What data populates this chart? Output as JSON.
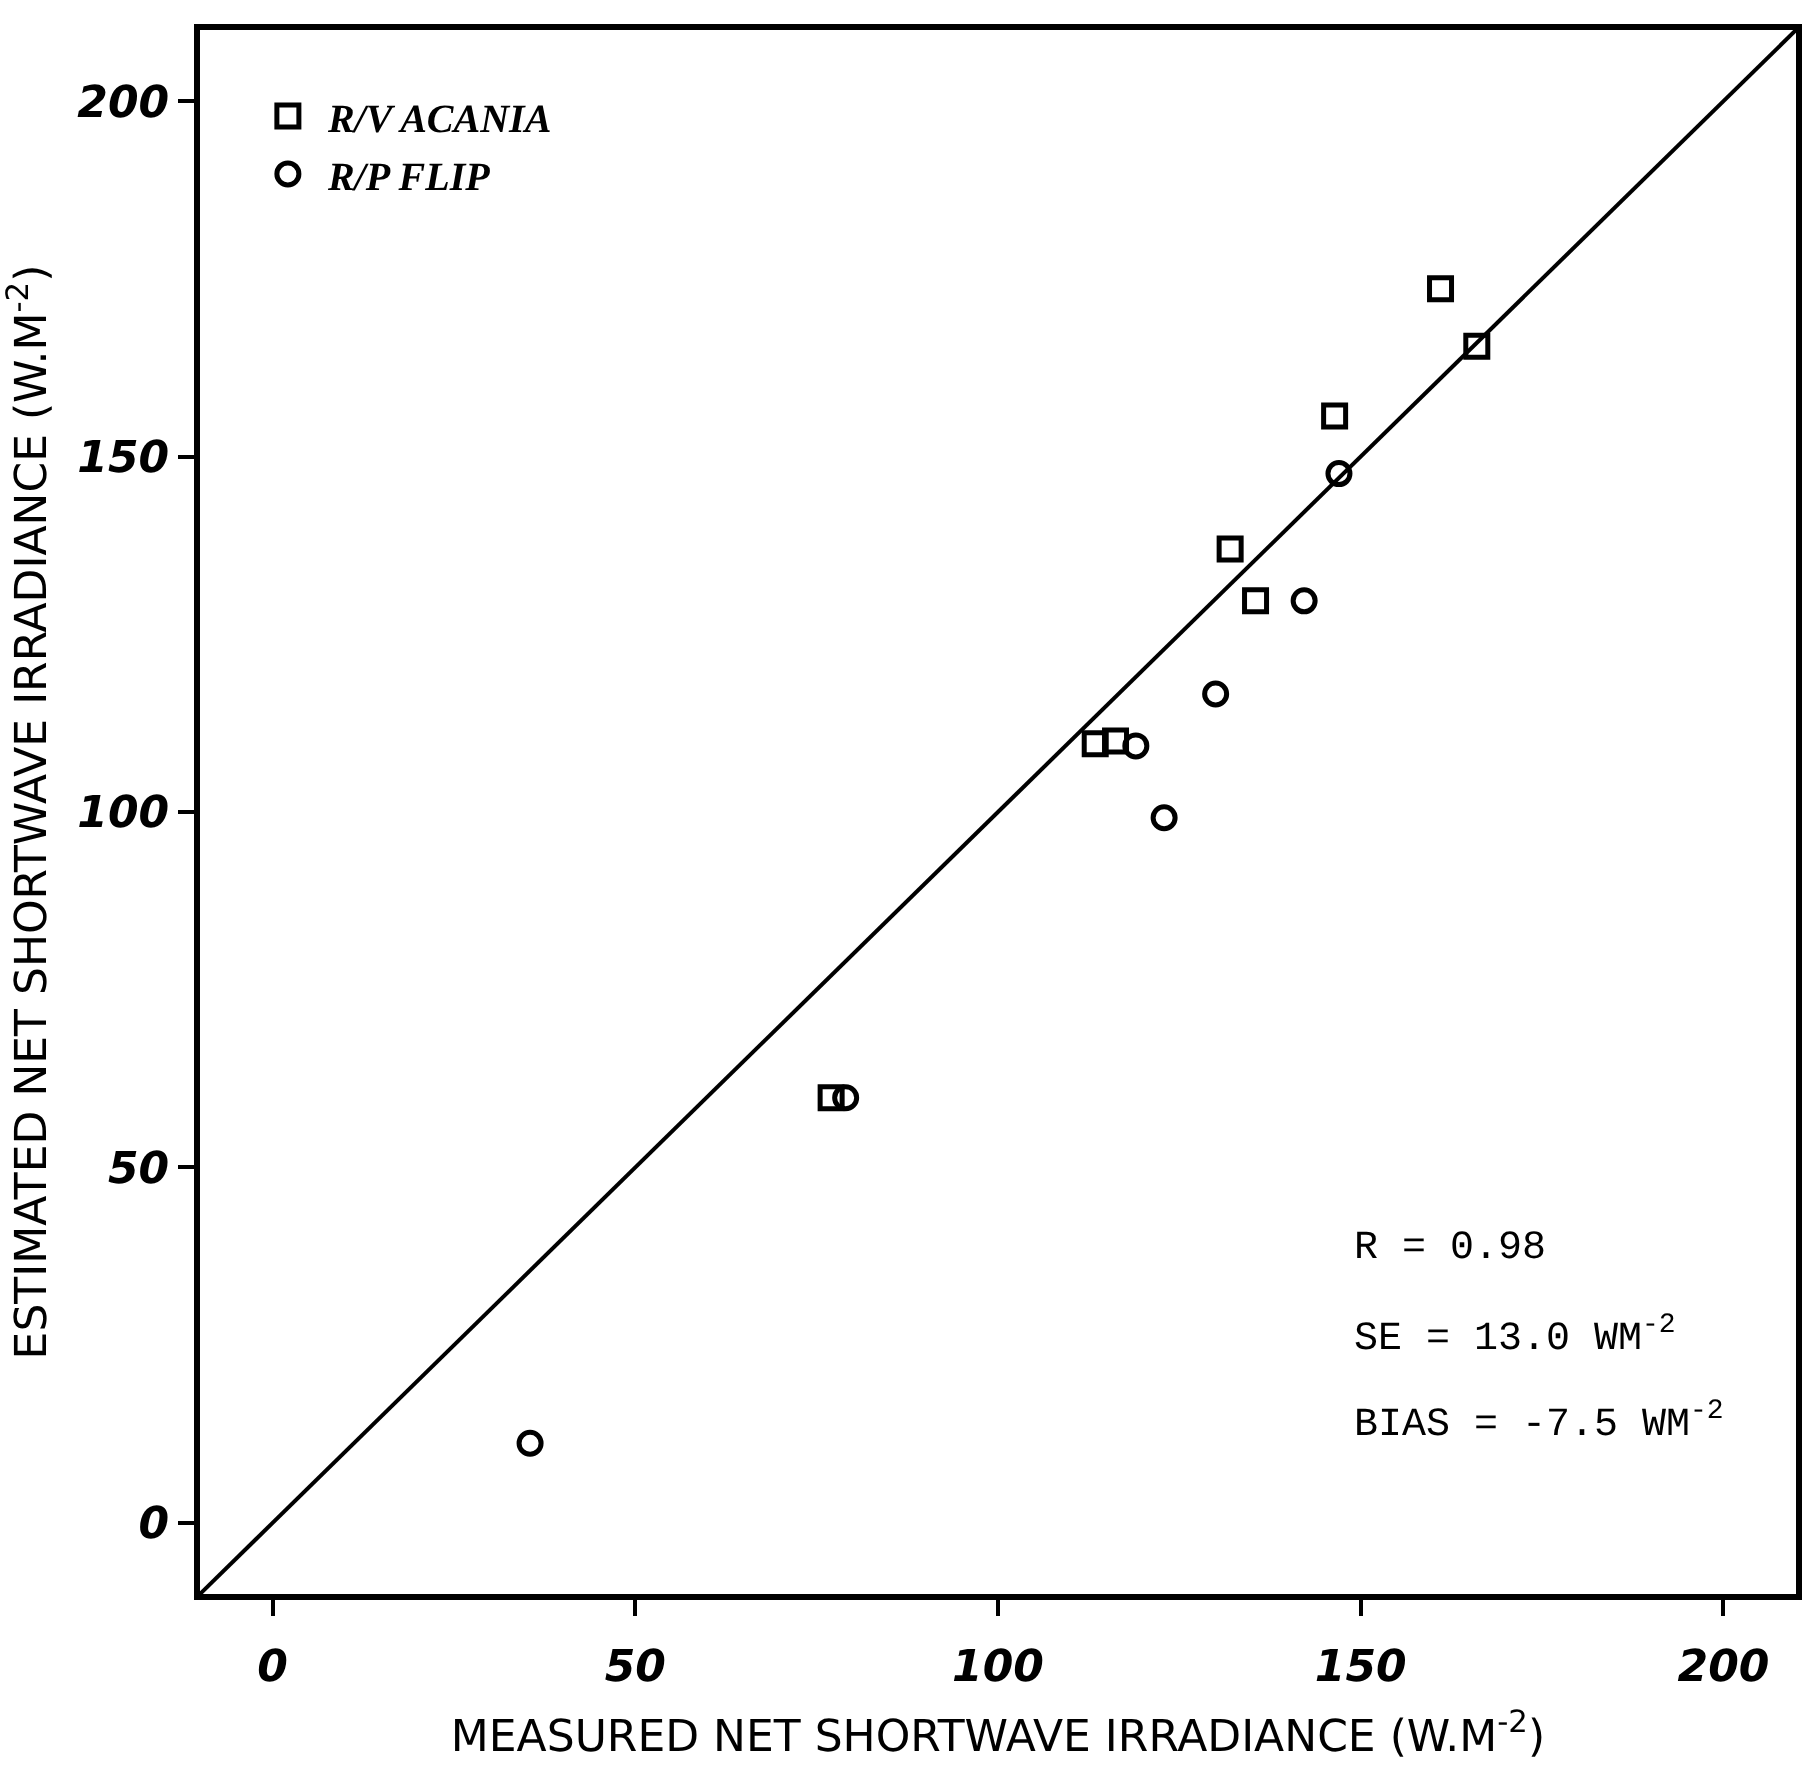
{
  "chart_data": {
    "type": "scatter",
    "xlabel": "MEASURED NET SHORTWAVE IRRADIANCE (W.M$^{-2}$)",
    "ylabel": "ESTIMATED NET SHORTWAVE IRRADIANCE (W.M$^{-2}$)",
    "xlim": [
      -10,
      210
    ],
    "ylim": [
      -10,
      210
    ],
    "xticks": [
      0,
      50,
      100,
      150,
      200
    ],
    "yticks": [
      0,
      50,
      100,
      150,
      200
    ],
    "legend": "top left",
    "series": [
      {
        "name": "R/V ACANIA",
        "color": "#000000",
        "marker": "square",
        "x": [
          161,
          166,
          146.4,
          132,
          135.5,
          113.4,
          116.2,
          77
        ],
        "values": [
          173.6,
          165.5,
          155.7,
          137,
          129.7,
          109.6,
          110,
          59.8
        ]
      },
      {
        "name": "R/P FLIP",
        "color": "#000000",
        "marker": "circle",
        "x": [
          147,
          142.2,
          130,
          119,
          122.9,
          79,
          35.5
        ],
        "values": [
          147.6,
          129.7,
          116.6,
          109.3,
          99.2,
          59.8,
          11.2
        ]
      },
      {
        "type": "line",
        "color": "#000000",
        "line_style": "solid",
        "marker": "none",
        "x": [
          -10,
          210
        ],
        "values": [
          -10,
          210
        ]
      }
    ],
    "annotations": [
      "R = 0.98",
      "SE = 13.0 WM$^{-2}$",
      "BIAS = -7.5 WM$^{-2}$"
    ]
  }
}
